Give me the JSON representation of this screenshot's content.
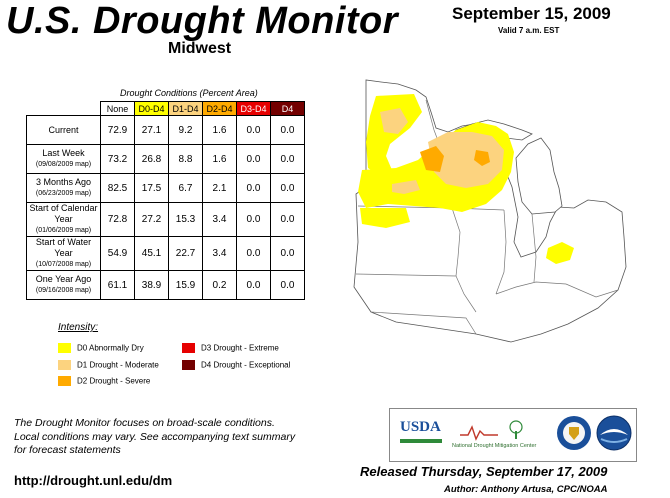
{
  "header": {
    "title": "U.S. Drought Monitor",
    "region": "Midwest",
    "date": "September 15, 2009",
    "valid": "Valid 7 a.m. EST"
  },
  "table": {
    "caption": "Drought Conditions (Percent Area)",
    "columns": [
      "None",
      "D0-D4",
      "D1-D4",
      "D2-D4",
      "D3-D4",
      "D4"
    ],
    "rows": [
      {
        "label": "Current",
        "sublabel": "",
        "values": [
          "72.9",
          "27.1",
          "9.2",
          "1.6",
          "0.0",
          "0.0"
        ]
      },
      {
        "label": "Last Week",
        "sublabel": "(09/08/2009 map)",
        "values": [
          "73.2",
          "26.8",
          "8.8",
          "1.6",
          "0.0",
          "0.0"
        ]
      },
      {
        "label": "3 Months Ago",
        "sublabel": "(06/23/2009 map)",
        "values": [
          "82.5",
          "17.5",
          "6.7",
          "2.1",
          "0.0",
          "0.0"
        ]
      },
      {
        "label": "Start of Calendar Year",
        "sublabel": "(01/06/2009 map)",
        "values": [
          "72.8",
          "27.2",
          "15.3",
          "3.4",
          "0.0",
          "0.0"
        ]
      },
      {
        "label": "Start of Water Year",
        "sublabel": "(10/07/2008 map)",
        "values": [
          "54.9",
          "45.1",
          "22.7",
          "3.4",
          "0.0",
          "0.0"
        ]
      },
      {
        "label": "One Year Ago",
        "sublabel": "(09/16/2008 map)",
        "values": [
          "61.1",
          "38.9",
          "15.9",
          "0.2",
          "0.0",
          "0.0"
        ]
      }
    ]
  },
  "legend": {
    "title": "Intensity:",
    "items": [
      {
        "label": "D0 Abnormally Dry",
        "color": "#ffff00"
      },
      {
        "label": "D1 Drought - Moderate",
        "color": "#fcd37f"
      },
      {
        "label": "D2 Drought - Severe",
        "color": "#ffaa00"
      },
      {
        "label": "D3 Drought - Extreme",
        "color": "#e60000"
      },
      {
        "label": "D4 Drought - Exceptional",
        "color": "#730000"
      }
    ]
  },
  "footer": {
    "note_line1": "The Drought Monitor focuses on broad-scale conditions.",
    "note_line2": "Local conditions may vary. See accompanying text summary",
    "note_line3": "for forecast statements",
    "url": "http://drought.unl.edu/dm",
    "released": "Released Thursday, September 17, 2009",
    "author": "Author: Anthony Artusa, CPC/NOAA"
  },
  "logos": {
    "usda": "USDA",
    "ndmc": "National Drought Mitigation Center"
  },
  "colors": {
    "d0": "#ffff00",
    "d1": "#fcd37f",
    "d2": "#ffaa00",
    "d3": "#e60000",
    "d4": "#730000"
  }
}
